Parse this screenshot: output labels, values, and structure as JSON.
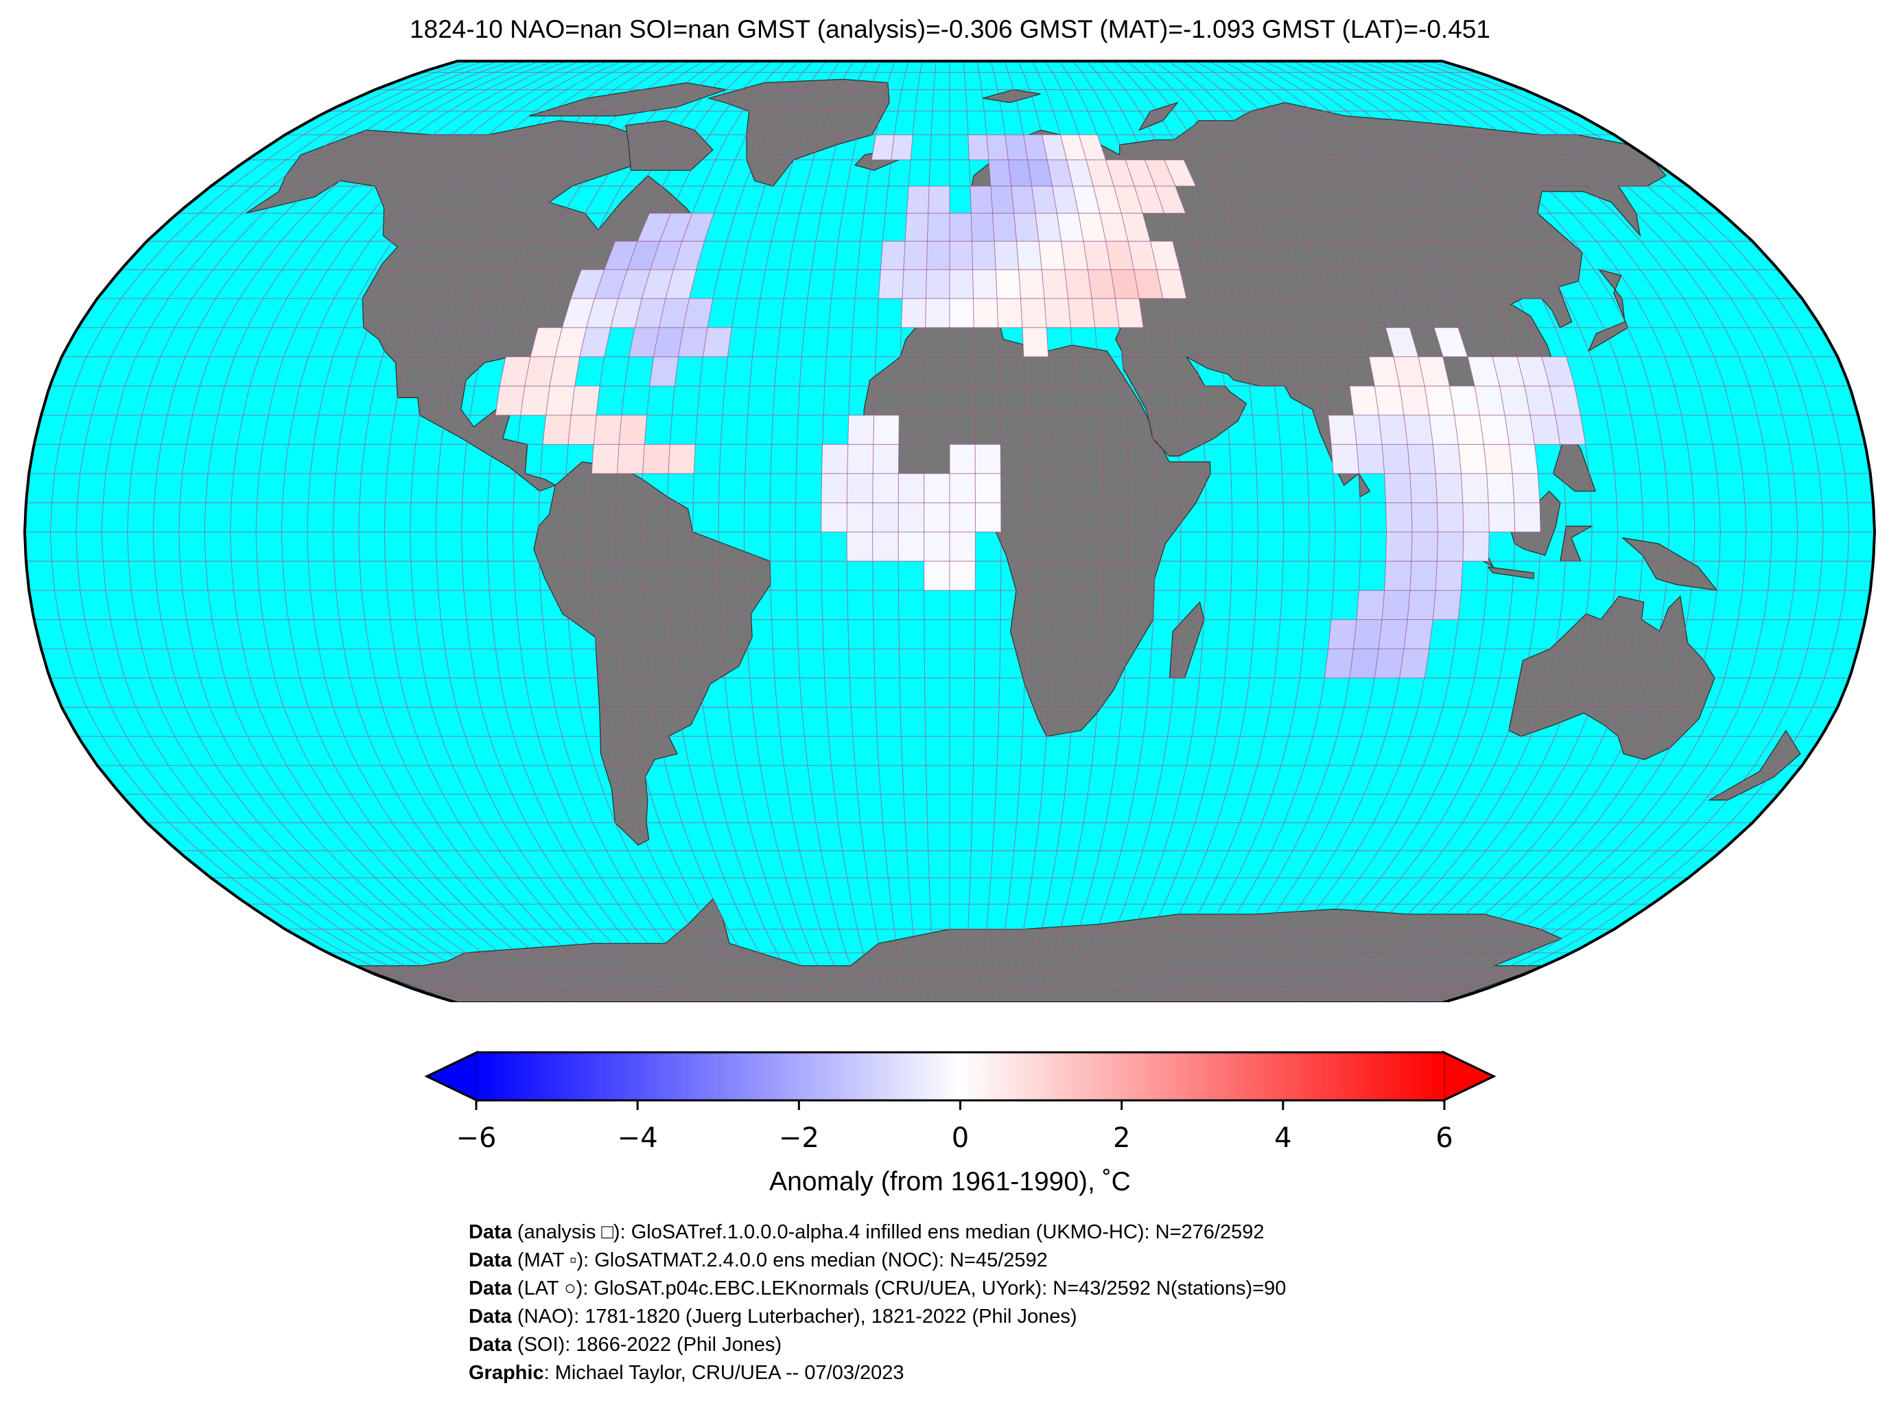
{
  "title": "1824-10 NAO=nan SOI=nan GMST (analysis)=-0.306 GMST (MAT)=-1.093 GMST (LAT)=-0.451",
  "map": {
    "projection": "Robinson",
    "ocean_color": "#00ffff",
    "land_color": "#777777",
    "grid_color": "#a0508c",
    "grid_spacing_deg": 5,
    "graticule": true
  },
  "legend": {
    "cmap": "bwr",
    "min": -6,
    "max": 6,
    "extend": "both",
    "ticks": [
      "−6",
      "−4",
      "−2",
      "0",
      "2",
      "4",
      "6"
    ],
    "tick_values": [
      -6,
      -4,
      -2,
      0,
      2,
      4,
      6
    ],
    "label": "Anomaly (from 1961-1990), ˚C",
    "colors": [
      "#0000ff",
      "#ffffff",
      "#ff0000"
    ]
  },
  "chart_data": {
    "type": "heatmap",
    "grid": "5x5 degree",
    "units": "°C",
    "cells": [
      {
        "lon": -70,
        "lat": 50,
        "value": -1.2
      },
      {
        "lon": -65,
        "lat": 50,
        "value": -1.2
      },
      {
        "lon": -60,
        "lat": 50,
        "value": -1.2
      },
      {
        "lon": -75,
        "lat": 45,
        "value": -1.4
      },
      {
        "lon": -70,
        "lat": 45,
        "value": -1.5
      },
      {
        "lon": -65,
        "lat": 45,
        "value": -1.3
      },
      {
        "lon": -60,
        "lat": 45,
        "value": -1.1
      },
      {
        "lon": -80,
        "lat": 40,
        "value": -0.8
      },
      {
        "lon": -75,
        "lat": 40,
        "value": -1.2
      },
      {
        "lon": -70,
        "lat": 40,
        "value": -1.0
      },
      {
        "lon": -65,
        "lat": 40,
        "value": -0.8
      },
      {
        "lon": -60,
        "lat": 40,
        "value": -0.7
      },
      {
        "lon": -80,
        "lat": 35,
        "value": -0.3
      },
      {
        "lon": -75,
        "lat": 35,
        "value": -0.5
      },
      {
        "lon": -70,
        "lat": 35,
        "value": -0.6
      },
      {
        "lon": -65,
        "lat": 35,
        "value": -1.0
      },
      {
        "lon": -60,
        "lat": 35,
        "value": -1.1
      },
      {
        "lon": -55,
        "lat": 35,
        "value": -1.1
      },
      {
        "lon": -85,
        "lat": 30,
        "value": 0.4
      },
      {
        "lon": -80,
        "lat": 30,
        "value": 0.3
      },
      {
        "lon": -75,
        "lat": 30,
        "value": -0.8
      },
      {
        "lon": -65,
        "lat": 30,
        "value": -1.3
      },
      {
        "lon": -60,
        "lat": 30,
        "value": -1.4
      },
      {
        "lon": -55,
        "lat": 30,
        "value": -1.2
      },
      {
        "lon": -50,
        "lat": 30,
        "value": -1.0
      },
      {
        "lon": -90,
        "lat": 25,
        "value": 0.6
      },
      {
        "lon": -85,
        "lat": 25,
        "value": 0.6
      },
      {
        "lon": -80,
        "lat": 25,
        "value": 0.5
      },
      {
        "lon": -60,
        "lat": 25,
        "value": -1.1
      },
      {
        "lon": -90,
        "lat": 20,
        "value": 0.6
      },
      {
        "lon": -85,
        "lat": 20,
        "value": 0.5
      },
      {
        "lon": -80,
        "lat": 20,
        "value": 0.4
      },
      {
        "lon": -75,
        "lat": 20,
        "value": 0.5
      },
      {
        "lon": -80,
        "lat": 15,
        "value": 0.7
      },
      {
        "lon": -75,
        "lat": 15,
        "value": 0.6
      },
      {
        "lon": -70,
        "lat": 15,
        "value": 0.7
      },
      {
        "lon": -65,
        "lat": 15,
        "value": 0.8
      },
      {
        "lon": -70,
        "lat": 10,
        "value": 0.6
      },
      {
        "lon": -65,
        "lat": 10,
        "value": 0.7
      },
      {
        "lon": -60,
        "lat": 10,
        "value": 0.8
      },
      {
        "lon": -55,
        "lat": 10,
        "value": 0.7
      },
      {
        "lon": -20,
        "lat": 65,
        "value": -0.7
      },
      {
        "lon": -15,
        "lat": 65,
        "value": -0.8
      },
      {
        "lon": 5,
        "lat": 65,
        "value": -1.1
      },
      {
        "lon": 10,
        "lat": 65,
        "value": -1.2
      },
      {
        "lon": 15,
        "lat": 65,
        "value": -1.4
      },
      {
        "lon": 20,
        "lat": 65,
        "value": -1.3
      },
      {
        "lon": 25,
        "lat": 65,
        "value": -0.6
      },
      {
        "lon": 30,
        "lat": 65,
        "value": 0.3
      },
      {
        "lon": 35,
        "lat": 65,
        "value": 0.4
      },
      {
        "lon": 10,
        "lat": 60,
        "value": -1.5
      },
      {
        "lon": 15,
        "lat": 60,
        "value": -1.7
      },
      {
        "lon": 20,
        "lat": 60,
        "value": -1.6
      },
      {
        "lon": 25,
        "lat": 60,
        "value": -1.0
      },
      {
        "lon": 30,
        "lat": 60,
        "value": -0.4
      },
      {
        "lon": 35,
        "lat": 60,
        "value": 0.5
      },
      {
        "lon": 40,
        "lat": 60,
        "value": 0.6
      },
      {
        "lon": 45,
        "lat": 60,
        "value": 0.6
      },
      {
        "lon": 50,
        "lat": 60,
        "value": 0.7
      },
      {
        "lon": 55,
        "lat": 60,
        "value": 0.5
      },
      {
        "lon": -10,
        "lat": 55,
        "value": -1.0
      },
      {
        "lon": -5,
        "lat": 55,
        "value": -1.0
      },
      {
        "lon": 5,
        "lat": 55,
        "value": -1.3
      },
      {
        "lon": 10,
        "lat": 55,
        "value": -1.4
      },
      {
        "lon": 15,
        "lat": 55,
        "value": -1.2
      },
      {
        "lon": 20,
        "lat": 55,
        "value": -0.9
      },
      {
        "lon": 25,
        "lat": 55,
        "value": -0.6
      },
      {
        "lon": 30,
        "lat": 55,
        "value": -0.2
      },
      {
        "lon": 35,
        "lat": 55,
        "value": 0.3
      },
      {
        "lon": 40,
        "lat": 55,
        "value": 0.5
      },
      {
        "lon": 45,
        "lat": 55,
        "value": 0.6
      },
      {
        "lon": 50,
        "lat": 55,
        "value": 0.6
      },
      {
        "lon": -10,
        "lat": 50,
        "value": -1.0
      },
      {
        "lon": -5,
        "lat": 50,
        "value": -1.1
      },
      {
        "lon": 0,
        "lat": 50,
        "value": -1.2
      },
      {
        "lon": 5,
        "lat": 50,
        "value": -1.3
      },
      {
        "lon": 10,
        "lat": 50,
        "value": -1.2
      },
      {
        "lon": 15,
        "lat": 50,
        "value": -0.9
      },
      {
        "lon": 20,
        "lat": 50,
        "value": -0.5
      },
      {
        "lon": 25,
        "lat": 50,
        "value": -0.2
      },
      {
        "lon": 30,
        "lat": 50,
        "value": 0.2
      },
      {
        "lon": 35,
        "lat": 50,
        "value": 0.4
      },
      {
        "lon": 40,
        "lat": 50,
        "value": 0.5
      },
      {
        "lon": -15,
        "lat": 45,
        "value": -0.9
      },
      {
        "lon": -10,
        "lat": 45,
        "value": -1.0
      },
      {
        "lon": -5,
        "lat": 45,
        "value": -1.1
      },
      {
        "lon": 0,
        "lat": 45,
        "value": -1.0
      },
      {
        "lon": 5,
        "lat": 45,
        "value": -0.9
      },
      {
        "lon": 10,
        "lat": 45,
        "value": -0.6
      },
      {
        "lon": 15,
        "lat": 45,
        "value": -0.3
      },
      {
        "lon": 20,
        "lat": 45,
        "value": 0.2
      },
      {
        "lon": 25,
        "lat": 45,
        "value": 0.4
      },
      {
        "lon": 30,
        "lat": 45,
        "value": 0.6
      },
      {
        "lon": 35,
        "lat": 45,
        "value": 0.8
      },
      {
        "lon": 40,
        "lat": 45,
        "value": 0.6
      },
      {
        "lon": 45,
        "lat": 45,
        "value": 0.4
      },
      {
        "lon": -15,
        "lat": 40,
        "value": -0.7
      },
      {
        "lon": -10,
        "lat": 40,
        "value": -0.8
      },
      {
        "lon": -5,
        "lat": 40,
        "value": -0.7
      },
      {
        "lon": 0,
        "lat": 40,
        "value": -0.5
      },
      {
        "lon": 5,
        "lat": 40,
        "value": -0.3
      },
      {
        "lon": 10,
        "lat": 40,
        "value": 0.1
      },
      {
        "lon": 15,
        "lat": 40,
        "value": 0.3
      },
      {
        "lon": 20,
        "lat": 40,
        "value": 0.5
      },
      {
        "lon": 25,
        "lat": 40,
        "value": 0.7
      },
      {
        "lon": 30,
        "lat": 40,
        "value": 1.0
      },
      {
        "lon": 35,
        "lat": 40,
        "value": 1.2
      },
      {
        "lon": 40,
        "lat": 40,
        "value": 1.1
      },
      {
        "lon": 45,
        "lat": 40,
        "value": 0.5
      },
      {
        "lon": -10,
        "lat": 35,
        "value": -0.4
      },
      {
        "lon": -5,
        "lat": 35,
        "value": -0.3
      },
      {
        "lon": 0,
        "lat": 35,
        "value": -0.1
      },
      {
        "lon": 5,
        "lat": 35,
        "value": 0.2
      },
      {
        "lon": 10,
        "lat": 35,
        "value": 0.3
      },
      {
        "lon": 15,
        "lat": 35,
        "value": 0.4
      },
      {
        "lon": 20,
        "lat": 35,
        "value": 0.5
      },
      {
        "lon": 25,
        "lat": 35,
        "value": 0.6
      },
      {
        "lon": 30,
        "lat": 35,
        "value": 0.7
      },
      {
        "lon": 35,
        "lat": 35,
        "value": 0.5
      },
      {
        "lon": 15,
        "lat": 30,
        "value": 0.3
      },
      {
        "lon": -20,
        "lat": 15,
        "value": -0.3
      },
      {
        "lon": -15,
        "lat": 15,
        "value": -0.2
      },
      {
        "lon": -25,
        "lat": 10,
        "value": -0.4
      },
      {
        "lon": -20,
        "lat": 10,
        "value": -0.3
      },
      {
        "lon": -15,
        "lat": 10,
        "value": -0.3
      },
      {
        "lon": 0,
        "lat": 10,
        "value": -0.2
      },
      {
        "lon": 5,
        "lat": 10,
        "value": -0.2
      },
      {
        "lon": -25,
        "lat": 5,
        "value": -0.4
      },
      {
        "lon": -20,
        "lat": 5,
        "value": -0.4
      },
      {
        "lon": -15,
        "lat": 5,
        "value": -0.3
      },
      {
        "lon": -10,
        "lat": 5,
        "value": -0.3
      },
      {
        "lon": -5,
        "lat": 5,
        "value": -0.2
      },
      {
        "lon": 0,
        "lat": 5,
        "value": -0.2
      },
      {
        "lon": 5,
        "lat": 5,
        "value": -0.1
      },
      {
        "lon": -25,
        "lat": 0,
        "value": -0.3
      },
      {
        "lon": -20,
        "lat": 0,
        "value": -0.3
      },
      {
        "lon": -15,
        "lat": 0,
        "value": -0.4
      },
      {
        "lon": -10,
        "lat": 0,
        "value": -0.3
      },
      {
        "lon": -5,
        "lat": 0,
        "value": -0.2
      },
      {
        "lon": 0,
        "lat": 0,
        "value": -0.2
      },
      {
        "lon": 5,
        "lat": 0,
        "value": -0.1
      },
      {
        "lon": -20,
        "lat": -5,
        "value": -0.3
      },
      {
        "lon": -15,
        "lat": -5,
        "value": -0.3
      },
      {
        "lon": -10,
        "lat": -5,
        "value": -0.2
      },
      {
        "lon": -5,
        "lat": -5,
        "value": -0.2
      },
      {
        "lon": 0,
        "lat": -5,
        "value": -0.2
      },
      {
        "lon": -5,
        "lat": -10,
        "value": -0.1
      },
      {
        "lon": 0,
        "lat": -10,
        "value": -0.1
      },
      {
        "lon": 90,
        "lat": 30,
        "value": -0.3
      },
      {
        "lon": 100,
        "lat": 30,
        "value": -0.2
      },
      {
        "lon": 85,
        "lat": 25,
        "value": 0.3
      },
      {
        "lon": 90,
        "lat": 25,
        "value": 0.4
      },
      {
        "lon": 95,
        "lat": 25,
        "value": 0.3
      },
      {
        "lon": 105,
        "lat": 25,
        "value": -0.2
      },
      {
        "lon": 110,
        "lat": 25,
        "value": -0.3
      },
      {
        "lon": 115,
        "lat": 25,
        "value": -0.4
      },
      {
        "lon": 120,
        "lat": 25,
        "value": -0.7
      },
      {
        "lon": 80,
        "lat": 20,
        "value": 0.2
      },
      {
        "lon": 85,
        "lat": 20,
        "value": 0.2
      },
      {
        "lon": 90,
        "lat": 20,
        "value": 0.3
      },
      {
        "lon": 95,
        "lat": 20,
        "value": 0.1
      },
      {
        "lon": 100,
        "lat": 20,
        "value": -0.1
      },
      {
        "lon": 105,
        "lat": 20,
        "value": -0.2
      },
      {
        "lon": 110,
        "lat": 20,
        "value": -0.3
      },
      {
        "lon": 115,
        "lat": 20,
        "value": -0.5
      },
      {
        "lon": 120,
        "lat": 20,
        "value": -0.6
      },
      {
        "lon": 75,
        "lat": 15,
        "value": -0.3
      },
      {
        "lon": 80,
        "lat": 15,
        "value": -0.5
      },
      {
        "lon": 85,
        "lat": 15,
        "value": -0.6
      },
      {
        "lon": 90,
        "lat": 15,
        "value": -0.5
      },
      {
        "lon": 95,
        "lat": 15,
        "value": -0.2
      },
      {
        "lon": 100,
        "lat": 15,
        "value": 0.1
      },
      {
        "lon": 105,
        "lat": 15,
        "value": -0.1
      },
      {
        "lon": 110,
        "lat": 15,
        "value": -0.3
      },
      {
        "lon": 115,
        "lat": 15,
        "value": -0.6
      },
      {
        "lon": 120,
        "lat": 15,
        "value": -0.7
      },
      {
        "lon": 75,
        "lat": 10,
        "value": -0.4
      },
      {
        "lon": 80,
        "lat": 10,
        "value": -0.7
      },
      {
        "lon": 85,
        "lat": 10,
        "value": -0.8
      },
      {
        "lon": 90,
        "lat": 10,
        "value": -0.7
      },
      {
        "lon": 95,
        "lat": 10,
        "value": -0.4
      },
      {
        "lon": 100,
        "lat": 10,
        "value": 0.1
      },
      {
        "lon": 105,
        "lat": 10,
        "value": 0.2
      },
      {
        "lon": 110,
        "lat": 10,
        "value": -0.2
      },
      {
        "lon": 85,
        "lat": 5,
        "value": -0.9
      },
      {
        "lon": 90,
        "lat": 5,
        "value": -0.8
      },
      {
        "lon": 95,
        "lat": 5,
        "value": -0.6
      },
      {
        "lon": 100,
        "lat": 5,
        "value": -0.3
      },
      {
        "lon": 105,
        "lat": 5,
        "value": -0.2
      },
      {
        "lon": 110,
        "lat": 5,
        "value": -0.3
      },
      {
        "lon": 85,
        "lat": 0,
        "value": -0.9
      },
      {
        "lon": 90,
        "lat": 0,
        "value": -0.9
      },
      {
        "lon": 95,
        "lat": 0,
        "value": -0.7
      },
      {
        "lon": 100,
        "lat": 0,
        "value": -0.5
      },
      {
        "lon": 105,
        "lat": 0,
        "value": -0.3
      },
      {
        "lon": 110,
        "lat": 0,
        "value": -0.3
      },
      {
        "lon": 85,
        "lat": -5,
        "value": -1.0
      },
      {
        "lon": 90,
        "lat": -5,
        "value": -1.0
      },
      {
        "lon": 95,
        "lat": -5,
        "value": -0.9
      },
      {
        "lon": 100,
        "lat": -5,
        "value": -0.6
      },
      {
        "lon": 85,
        "lat": -10,
        "value": -1.1
      },
      {
        "lon": 90,
        "lat": -10,
        "value": -1.1
      },
      {
        "lon": 95,
        "lat": -10,
        "value": -1.0
      },
      {
        "lon": 80,
        "lat": -15,
        "value": -1.2
      },
      {
        "lon": 85,
        "lat": -15,
        "value": -1.3
      },
      {
        "lon": 90,
        "lat": -15,
        "value": -1.2
      },
      {
        "lon": 95,
        "lat": -15,
        "value": -1.1
      },
      {
        "lon": 75,
        "lat": -20,
        "value": -1.3
      },
      {
        "lon": 80,
        "lat": -20,
        "value": -1.4
      },
      {
        "lon": 85,
        "lat": -20,
        "value": -1.3
      },
      {
        "lon": 90,
        "lat": -20,
        "value": -1.2
      },
      {
        "lon": 75,
        "lat": -25,
        "value": -1.4
      },
      {
        "lon": 80,
        "lat": -25,
        "value": -1.5
      },
      {
        "lon": 85,
        "lat": -25,
        "value": -1.4
      },
      {
        "lon": 90,
        "lat": -25,
        "value": -1.3
      }
    ]
  },
  "credits": [
    {
      "bold": "Data",
      "text": " (analysis □): GloSATref.1.0.0.0-alpha.4 infilled ens median (UKMO-HC): N=276/2592"
    },
    {
      "bold": "Data",
      "text": " (MAT ▫): GloSATMAT.2.4.0.0 ens median (NOC): N=45/2592"
    },
    {
      "bold": "Data",
      "text": " (LAT ○): GloSAT.p04c.EBC.LEKnormals (CRU/UEA, UYork): N=43/2592 N(stations)=90"
    },
    {
      "bold": "Data",
      "text": " (NAO): 1781-1820 (Juerg Luterbacher), 1821-2022 (Phil Jones)"
    },
    {
      "bold": "Data",
      "text": " (SOI): 1866-2022 (Phil Jones)"
    },
    {
      "bold": "Graphic",
      "text": ": Michael Taylor, CRU/UEA -- 07/03/2023"
    }
  ]
}
